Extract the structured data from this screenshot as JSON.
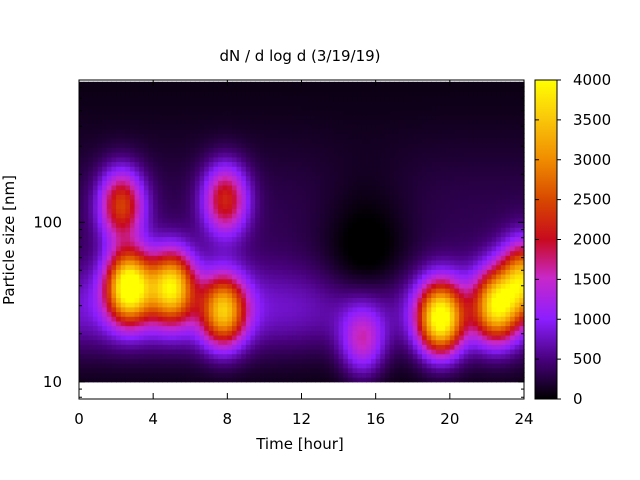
{
  "chart_data": {
    "type": "heatmap",
    "title": "dN / d log d (3/19/19)",
    "xlabel": "Time [hour]",
    "ylabel": "Particle size [nm]",
    "xlim": [
      0,
      24
    ],
    "ylim": [
      7.8,
      780
    ],
    "yscale": "log",
    "xticks": [
      0,
      4,
      8,
      12,
      16,
      20,
      24
    ],
    "yticks": [
      10,
      100
    ],
    "colorbar": {
      "ticks": [
        0,
        500,
        1000,
        1500,
        2000,
        2500,
        3000,
        3500,
        4000
      ],
      "range": [
        0,
        4000
      ],
      "palette": "black-purple-red-orange-yellow"
    },
    "grid": false,
    "size_range_nm": [
      10,
      760
    ],
    "blobs": [
      {
        "time": 2.7,
        "size": 40,
        "peak": 3800
      },
      {
        "time": 5.0,
        "size": 40,
        "peak": 3200
      },
      {
        "time": 7.8,
        "size": 28,
        "peak": 2800
      },
      {
        "time": 2.3,
        "size": 130,
        "peak": 2100
      },
      {
        "time": 7.9,
        "size": 140,
        "peak": 1900
      },
      {
        "time": 19.5,
        "size": 25,
        "peak": 3600
      },
      {
        "time": 22.5,
        "size": 30,
        "peak": 3000
      },
      {
        "time": 24.0,
        "size": 45,
        "peak": 2800
      },
      {
        "time": 15.3,
        "size": 18,
        "peak": 1300
      }
    ]
  }
}
